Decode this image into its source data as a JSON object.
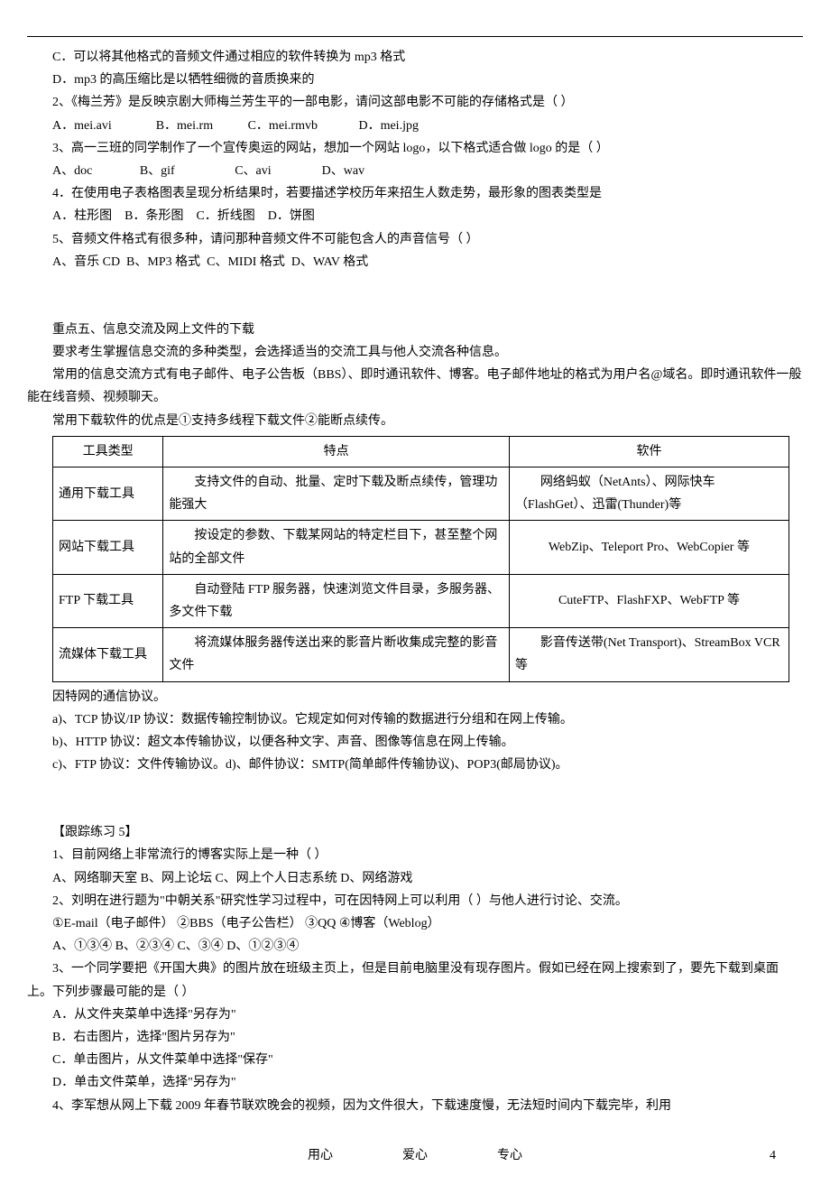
{
  "top": {
    "optC": "C．可以将其他格式的音频文件通过相应的软件转换为 mp3 格式",
    "optD": "D．mp3 的高压缩比是以牺牲细微的音质换来的",
    "q2": "2、《梅兰芳》是反映京剧大师梅兰芳生平的一部电影，请问这部电影不可能的存储格式是（      ）",
    "q2_opts": "A．mei.avi              B．mei.rm           C．mei.rmvb             D．mei.jpg",
    "q3": "3、高一三班的同学制作了一个宣传奥运的网站，想加一个网站 logo，以下格式适合做 logo 的是（    ）",
    "q3_opts": "A、doc               B、gif                   C、avi                D、wav",
    "q4": "4．在使用电子表格图表呈现分析结果时，若要描述学校历年来招生人数走势，最形象的图表类型是",
    "q4_opts": "A．柱形图    B．条形图    C．折线图    D．饼图",
    "q5": "5、音频文件格式有很多种，请问那种音频文件不可能包含人的声音信号（   ）",
    "q5_opts": "A、音乐 CD  B、MP3 格式  C、MIDI 格式  D、WAV 格式"
  },
  "sec5": {
    "title": "重点五、信息交流及网上文件的下载",
    "p1": "要求考生掌握信息交流的多种类型，会选择适当的交流工具与他人交流各种信息。",
    "p2": "常用的信息交流方式有电子邮件、电子公告板（BBS）、即时通讯软件、博客。电子邮件地址的格式为用户名@域名。即时通讯软件一般能在线音频、视频聊天。",
    "p3": "常用下载软件的优点是①支持多线程下载文件②能断点续传。"
  },
  "table": {
    "headers": [
      "工具类型",
      "特点",
      "软件"
    ],
    "rows": [
      {
        "type": "通用下载工具",
        "feat": "支持文件的自动、批量、定时下载及断点续传，管理功能强大",
        "soft": "网络蚂蚁（NetAnts）、网际快车（FlashGet）、迅雷(Thunder)等"
      },
      {
        "type": "网站下载工具",
        "feat": "按设定的参数、下载某网站的特定栏目下，甚至整个网站的全部文件",
        "soft": "WebZip、Teleport Pro、WebCopier 等"
      },
      {
        "type": "FTP 下载工具",
        "feat": "自动登陆 FTP 服务器，快速浏览文件目录，多服务器、多文件下载",
        "soft": "CuteFTP、FlashFXP、WebFTP 等"
      },
      {
        "type": "流媒体下载工具",
        "feat": "将流媒体服务器传送出来的影音片断收集成完整的影音文件",
        "soft": "影音传送带(Net Transport)、StreamBox VCR 等"
      }
    ]
  },
  "proto": {
    "p0": "因特网的通信协议。",
    "a": "a)、TCP 协议/IP 协议：数据传输控制协议。它规定如何对传输的数据进行分组和在网上传输。",
    "b": "b)、HTTP 协议：超文本传输协议，以便各种文字、声音、图像等信息在网上传输。",
    "c": "c)、FTP 协议：文件传输协议。d)、邮件协议：SMTP(简单邮件传输协议)、POP3(邮局协议)。"
  },
  "ex5": {
    "title": "【跟踪练习 5】",
    "q1": "1、目前网络上非常流行的博客实际上是一种（     ）",
    "q1_opts": "A、网络聊天室        B、网上论坛      C、网上个人日志系统      D、网络游戏",
    "q2": "2、刘明在进行题为\"中朝关系\"研究性学习过程中，可在因特网上可以利用（     ）与他人进行讨论、交流。",
    "q2_sub": "①E-mail（电子邮件）  ②BBS（电子公告栏）  ③QQ  ④博客（Weblog）",
    "q2_opts": "A、①③④      B、②③④      C、③④      D、①②③④",
    "q3": "3、一个同学要把《开国大典》的图片放在班级主页上，但是目前电脑里没有现存图片。假如已经在网上搜索到了，要先下载到桌面上。下列步骤最可能的是（     ）",
    "q3a": "A．从文件夹菜单中选择\"另存为\"",
    "q3b": "B．右击图片，选择\"图片另存为\"",
    "q3c": "C．单击图片，从文件菜单中选择\"保存\"",
    "q3d": "D．单击文件菜单，选择\"另存为\"",
    "q4": "4、李军想从网上下载 2009 年春节联欢晚会的视频，因为文件很大，下载速度慢，无法短时间内下载完毕，利用"
  },
  "footer": {
    "w1": "用心",
    "w2": "爱心",
    "w3": "专心",
    "page": "4"
  }
}
